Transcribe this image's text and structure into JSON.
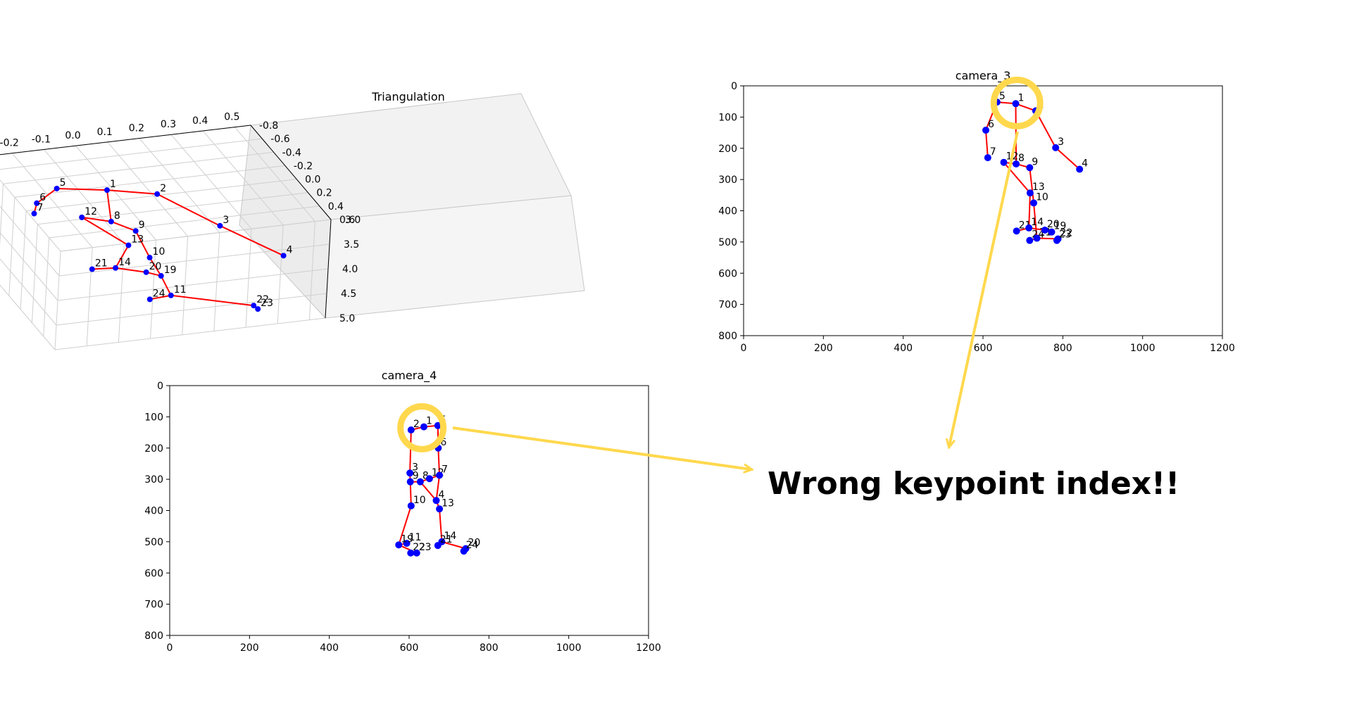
{
  "annotation": {
    "text": "Wrong keypoint index!!",
    "highlight_color": "#FFD84D"
  },
  "chart_data": [
    {
      "type": "scatter",
      "title": "Triangulation",
      "xlim": [
        -0.3,
        0.55
      ],
      "ylim": [
        -0.8,
        0.6
      ],
      "zlim": [
        3.0,
        5.0
      ],
      "x_ticks": [
        "0.5",
        "0.4",
        "0.3",
        "0.2",
        "0.1",
        "0.0",
        "-0.1",
        "-0.2"
      ],
      "y_ticks": [
        "-0.8",
        "-0.6",
        "-0.4",
        "-0.2",
        "0.0",
        "0.2",
        "0.4",
        "0.6"
      ],
      "z_ticks": [
        "3.0",
        "3.5",
        "4.0",
        "4.5",
        "5.0"
      ],
      "point_color": "#0000FF",
      "line_color": "#FF0000",
      "points": [
        {
          "label": "1",
          "x": 0.02,
          "y": -0.35,
          "z": 3.3
        },
        {
          "label": "2",
          "x": 0.16,
          "y": -0.25,
          "z": 3.35
        },
        {
          "label": "3",
          "x": 0.32,
          "y": -0.02,
          "z": 3.8
        },
        {
          "label": "4",
          "x": 0.48,
          "y": 0.22,
          "z": 4.2
        },
        {
          "label": "5",
          "x": -0.12,
          "y": -0.45,
          "z": 3.3
        },
        {
          "label": "6",
          "x": -0.2,
          "y": -0.35,
          "z": 3.4
        },
        {
          "label": "7",
          "x": -0.22,
          "y": -0.28,
          "z": 3.5
        },
        {
          "label": "8",
          "x": 0.0,
          "y": -0.15,
          "z": 3.65
        },
        {
          "label": "9",
          "x": 0.06,
          "y": -0.05,
          "z": 3.75
        },
        {
          "label": "10",
          "x": 0.08,
          "y": 0.1,
          "z": 4.1
        },
        {
          "label": "11",
          "x": 0.1,
          "y": 0.38,
          "z": 4.5
        },
        {
          "label": "12",
          "x": -0.08,
          "y": -0.22,
          "z": 3.6
        },
        {
          "label": "13",
          "x": 0.03,
          "y": 0.0,
          "z": 3.95
        },
        {
          "label": "14",
          "x": -0.03,
          "y": 0.12,
          "z": 4.2
        },
        {
          "label": "19",
          "x": 0.1,
          "y": 0.2,
          "z": 4.35
        },
        {
          "label": "20",
          "x": 0.06,
          "y": 0.16,
          "z": 4.3
        },
        {
          "label": "21",
          "x": -0.1,
          "y": 0.1,
          "z": 4.2
        },
        {
          "label": "22",
          "x": 0.35,
          "y": 0.45,
          "z": 4.8
        },
        {
          "label": "23",
          "x": 0.36,
          "y": 0.47,
          "z": 4.85
        },
        {
          "label": "24",
          "x": 0.03,
          "y": 0.4,
          "z": 4.5
        }
      ],
      "edges": [
        [
          "1",
          "2"
        ],
        [
          "2",
          "3"
        ],
        [
          "3",
          "4"
        ],
        [
          "1",
          "5"
        ],
        [
          "5",
          "6"
        ],
        [
          "6",
          "7"
        ],
        [
          "1",
          "8"
        ],
        [
          "8",
          "9"
        ],
        [
          "8",
          "12"
        ],
        [
          "9",
          "10"
        ],
        [
          "10",
          "19"
        ],
        [
          "19",
          "11"
        ],
        [
          "12",
          "13"
        ],
        [
          "13",
          "14"
        ],
        [
          "14",
          "21"
        ],
        [
          "14",
          "20"
        ],
        [
          "20",
          "19"
        ],
        [
          "11",
          "24"
        ],
        [
          "11",
          "22"
        ]
      ]
    },
    {
      "type": "scatter",
      "title": "camera_3",
      "xlim": [
        0,
        1200
      ],
      "ylim": [
        800,
        0
      ],
      "x_ticks": [
        0,
        200,
        400,
        600,
        800,
        1000,
        1200
      ],
      "y_ticks": [
        0,
        100,
        200,
        300,
        400,
        500,
        600,
        700,
        800
      ],
      "point_color": "#0000FF",
      "line_color": "#FF0000",
      "points": [
        {
          "label": "1",
          "x": 682,
          "y": 57
        },
        {
          "label": "2",
          "x": 732,
          "y": 80
        },
        {
          "label": "3",
          "x": 782,
          "y": 198
        },
        {
          "label": "4",
          "x": 842,
          "y": 267
        },
        {
          "label": "5",
          "x": 635,
          "y": 52
        },
        {
          "label": "6",
          "x": 607,
          "y": 142
        },
        {
          "label": "7",
          "x": 612,
          "y": 230
        },
        {
          "label": "12",
          "x": 652,
          "y": 245
        },
        {
          "label": "8",
          "x": 683,
          "y": 250
        },
        {
          "label": "9",
          "x": 717,
          "y": 262
        },
        {
          "label": "13",
          "x": 718,
          "y": 343
        },
        {
          "label": "10",
          "x": 727,
          "y": 375
        },
        {
          "label": "21",
          "x": 684,
          "y": 465
        },
        {
          "label": "14",
          "x": 715,
          "y": 455
        },
        {
          "label": "24",
          "x": 717,
          "y": 495
        },
        {
          "label": "11",
          "x": 735,
          "y": 488
        },
        {
          "label": "20",
          "x": 755,
          "y": 462
        },
        {
          "label": "19",
          "x": 772,
          "y": 468
        },
        {
          "label": "22",
          "x": 788,
          "y": 490
        },
        {
          "label": "23",
          "x": 785,
          "y": 495
        }
      ],
      "edges": [
        [
          "1",
          "2"
        ],
        [
          "2",
          "3"
        ],
        [
          "3",
          "4"
        ],
        [
          "1",
          "5"
        ],
        [
          "5",
          "6"
        ],
        [
          "6",
          "7"
        ],
        [
          "1",
          "8"
        ],
        [
          "8",
          "9"
        ],
        [
          "8",
          "12"
        ],
        [
          "12",
          "13"
        ],
        [
          "9",
          "10"
        ],
        [
          "13",
          "14"
        ],
        [
          "10",
          "11"
        ],
        [
          "14",
          "21"
        ],
        [
          "14",
          "20"
        ],
        [
          "20",
          "19"
        ],
        [
          "11",
          "24"
        ],
        [
          "11",
          "22"
        ]
      ],
      "highlight": {
        "x": 685,
        "y": 55,
        "r": 80
      }
    },
    {
      "type": "scatter",
      "title": "camera_4",
      "xlim": [
        0,
        1200
      ],
      "ylim": [
        800,
        0
      ],
      "x_ticks": [
        0,
        200,
        400,
        600,
        800,
        1000,
        1200
      ],
      "y_ticks": [
        0,
        100,
        200,
        300,
        400,
        500,
        600,
        700,
        800
      ],
      "point_color": "#0000FF",
      "line_color": "#FF0000",
      "points": [
        {
          "label": "2",
          "x": 605,
          "y": 142
        },
        {
          "label": "1",
          "x": 637,
          "y": 132
        },
        {
          "label": "5",
          "x": 672,
          "y": 128
        },
        {
          "label": "6",
          "x": 673,
          "y": 200
        },
        {
          "label": "3",
          "x": 602,
          "y": 280
        },
        {
          "label": "9",
          "x": 603,
          "y": 308
        },
        {
          "label": "8",
          "x": 628,
          "y": 308
        },
        {
          "label": "12",
          "x": 651,
          "y": 298
        },
        {
          "label": "7",
          "x": 676,
          "y": 287
        },
        {
          "label": "4",
          "x": 668,
          "y": 368
        },
        {
          "label": "10",
          "x": 605,
          "y": 385
        },
        {
          "label": "13",
          "x": 676,
          "y": 395
        },
        {
          "label": "11",
          "x": 594,
          "y": 505
        },
        {
          "label": "19",
          "x": 574,
          "y": 510
        },
        {
          "label": "22",
          "x": 604,
          "y": 536
        },
        {
          "label": "23",
          "x": 619,
          "y": 536
        },
        {
          "label": "14",
          "x": 682,
          "y": 500
        },
        {
          "label": "21",
          "x": 672,
          "y": 512
        },
        {
          "label": "20",
          "x": 742,
          "y": 522
        },
        {
          "label": "24",
          "x": 737,
          "y": 530
        }
      ],
      "edges": [
        [
          "1",
          "2"
        ],
        [
          "1",
          "5"
        ],
        [
          "5",
          "6"
        ],
        [
          "6",
          "7"
        ],
        [
          "2",
          "3"
        ],
        [
          "3",
          "9"
        ],
        [
          "9",
          "8"
        ],
        [
          "8",
          "12"
        ],
        [
          "12",
          "7"
        ],
        [
          "7",
          "4"
        ],
        [
          "8",
          "4"
        ],
        [
          "4",
          "13"
        ],
        [
          "9",
          "10"
        ],
        [
          "10",
          "19"
        ],
        [
          "19",
          "23"
        ],
        [
          "19",
          "11"
        ],
        [
          "13",
          "14"
        ],
        [
          "14",
          "21"
        ],
        [
          "14",
          "20"
        ]
      ],
      "highlight": {
        "x": 632,
        "y": 135,
        "r": 72
      }
    }
  ]
}
